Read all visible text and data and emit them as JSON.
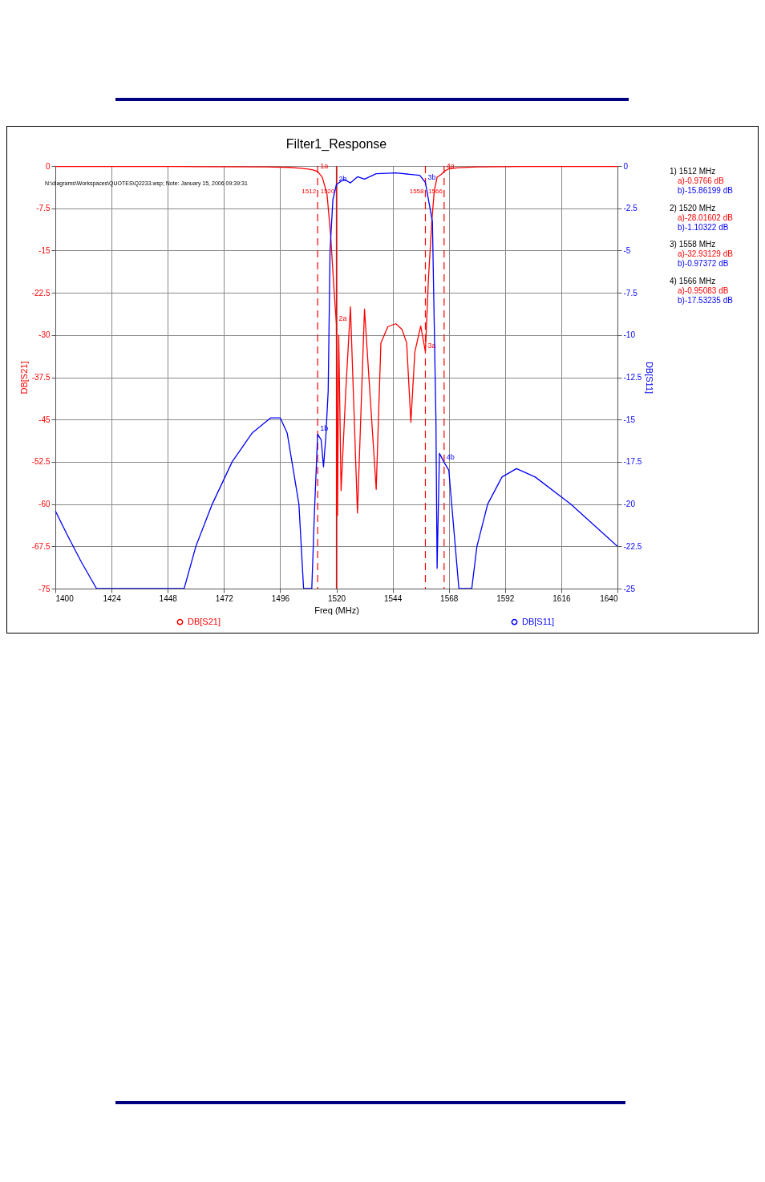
{
  "chart_data": {
    "type": "line",
    "title": "Filter1_Response",
    "xlabel": "Freq (MHz)",
    "ylabel": "DB[S21]",
    "y2label": "DB[S11]",
    "xlim": [
      1400,
      1640
    ],
    "xticks": [
      1400,
      1424,
      1448,
      1472,
      1496,
      1520,
      1544,
      1568,
      1592,
      1616,
      1640
    ],
    "ylim": [
      -75,
      0
    ],
    "yticks": [
      -75,
      -67.5,
      -60,
      -52.5,
      -45,
      -37.5,
      -30,
      -22.5,
      -15,
      -7.5,
      0
    ],
    "y2lim": [
      -25,
      0
    ],
    "y2ticks": [
      -25,
      -22.5,
      -20,
      -17.5,
      -15,
      -12.5,
      -10,
      -7.5,
      -5,
      -2.5,
      0
    ],
    "grid": true,
    "legend": "bottom",
    "series": [
      {
        "name": "DB[S21]",
        "color": "#ff0000",
        "x": [
          1400,
          1450,
          1490,
          1500,
          1505,
          1508,
          1510,
          1512,
          1514,
          1516,
          1517.5,
          1519,
          1520,
          1520.5,
          1521,
          1522,
          1524,
          1526,
          1529,
          1532,
          1537,
          1539,
          1542,
          1545.4,
          1548,
          1550,
          1551.8,
          1553.5,
          1556,
          1558,
          1559.3,
          1560.8,
          1561.8,
          1563,
          1564.8,
          1566,
          1568,
          1572,
          1580,
          1600,
          1640
        ],
        "values": [
          -0.1,
          -0.1,
          -0.15,
          -0.25,
          -0.4,
          -0.55,
          -0.7,
          -0.9766,
          -2,
          -5,
          -12,
          -22,
          -28.01602,
          -62,
          -30,
          -57.6,
          -40,
          -25,
          -61.6,
          -25.4,
          -57.4,
          -31.4,
          -28.5,
          -28,
          -29,
          -31.4,
          -45.5,
          -33,
          -28.4,
          -32.93129,
          -20,
          -9.5,
          -4.4,
          -2,
          -1.5,
          -0.95083,
          -0.5,
          -0.3,
          -0.15,
          -0.1,
          -0.1
        ]
      },
      {
        "name": "DB[S11]",
        "color": "#0000ff",
        "axis": "y2",
        "x": [
          1400,
          1405,
          1411,
          1417.6,
          1455,
          1460,
          1467,
          1475.5,
          1484,
          1492,
          1496,
          1499,
          1504,
          1506,
          1509.5,
          1510.6,
          1512,
          1513.5,
          1514.5,
          1515.5,
          1516.5,
          1517.3,
          1518.5,
          1520,
          1523.2,
          1526,
          1529,
          1532,
          1537,
          1545.4,
          1555.6,
          1558,
          1561,
          1562.5,
          1563,
          1564,
          1566,
          1568,
          1572.3,
          1577.8,
          1580,
          1584.6,
          1590.7,
          1596.9,
          1604.9,
          1620,
          1640
        ],
        "values": [
          -20.4,
          -21.8,
          -23.4,
          -25,
          -25,
          -22.5,
          -20,
          -17.5,
          -15.8,
          -14.9,
          -14.9,
          -15.8,
          -20,
          -25,
          -25,
          -20.6,
          -15.86199,
          -16.2,
          -17.8,
          -16,
          -13.3,
          -5,
          -2,
          -1.10322,
          -0.78,
          -1,
          -0.64,
          -0.78,
          -0.46,
          -0.41,
          -0.55,
          -0.97372,
          -3.3,
          -15,
          -23.8,
          -17,
          -17.53235,
          -18,
          -25,
          -25,
          -22.5,
          -20,
          -18.4,
          -17.9,
          -18.4,
          -20,
          -22.5
        ]
      }
    ],
    "ref_lines": [
      {
        "axis": "x",
        "value": 1512,
        "label": "1512",
        "color": "#ff0000",
        "line_style": "dashed"
      },
      {
        "axis": "x",
        "value": 1520,
        "label": "1520",
        "color": "#ff0000",
        "line_style": "solid"
      },
      {
        "axis": "x",
        "value": 1558,
        "label": "1558",
        "color": "#ff0000",
        "line_style": "dashed"
      },
      {
        "axis": "x",
        "value": 1566,
        "label": "1566",
        "color": "#ff0000",
        "line_style": "dashed"
      }
    ],
    "annotations": [
      "N:\\diagrams\\Workspaces\\QUOTES\\Q2233.wsp; Note:   January 15, 2006   09:39:31",
      "1) 1512 MHz",
      "a)-0.9766 dB",
      "b)-15.86199 dB",
      "2) 1520 MHz",
      "a)-28.01602 dB",
      "b)-1.10322 dB",
      "3) 1558 MHz",
      "a)-32.93129 dB",
      "b)-0.97372 dB",
      "4) 1566 MHz",
      "a)-0.95083 dB",
      "b)-17.53235 dB",
      "1b",
      "2b",
      "3b",
      "4b",
      {
        "text": "1a",
        "x": 1512,
        "y": -0.9766
      },
      {
        "text": "2a",
        "x": 1520,
        "y": -28.01602
      },
      {
        "text": "3a",
        "x": 1558,
        "y": -32.93129
      },
      {
        "text": "4a",
        "x": 1566,
        "y": -0.95083
      }
    ]
  }
}
